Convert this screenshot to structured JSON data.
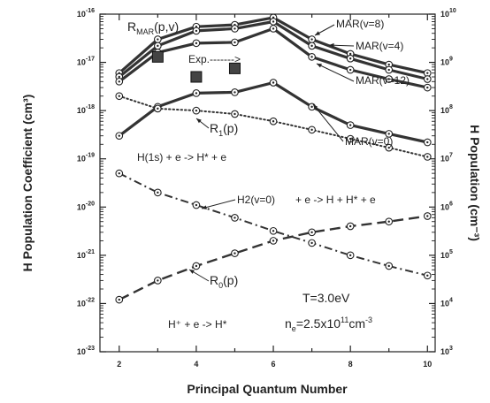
{
  "chart_data": {
    "type": "line",
    "title": "",
    "xlabel": "Principal Quantum Number",
    "ylabel": "H Population Coefficient (cm³)",
    "y2label": "H Population (cm⁻³)",
    "xlim": [
      1.5,
      10.2
    ],
    "ylim": [
      1e-23,
      1e-16
    ],
    "y2lim": [
      1000.0,
      10000000000.0
    ],
    "yscale": "log",
    "grid": false,
    "x_ticks": [
      2,
      4,
      6,
      8,
      10
    ],
    "y_ticks": [
      {
        "base": "10",
        "exp": "-16"
      },
      {
        "base": "10",
        "exp": "-17"
      },
      {
        "base": "10",
        "exp": "-18"
      },
      {
        "base": "10",
        "exp": "-19"
      },
      {
        "base": "10",
        "exp": "-20"
      },
      {
        "base": "10",
        "exp": "-21"
      },
      {
        "base": "10",
        "exp": "-22"
      },
      {
        "base": "10",
        "exp": "-23"
      }
    ],
    "y2_ticks": [
      {
        "base": "10",
        "exp": "10"
      },
      {
        "base": "10",
        "exp": "9"
      },
      {
        "base": "10",
        "exp": "8"
      },
      {
        "base": "10",
        "exp": "7"
      },
      {
        "base": "10",
        "exp": "6"
      },
      {
        "base": "10",
        "exp": "5"
      },
      {
        "base": "10",
        "exp": "4"
      },
      {
        "base": "10",
        "exp": "3"
      }
    ],
    "series": [
      {
        "name": "MAR(v=8)",
        "style": "thick",
        "x": [
          2,
          3,
          4,
          5,
          6,
          7,
          8,
          9,
          10
        ],
        "y": [
          6e-18,
          3e-17,
          5.5e-17,
          6e-17,
          8.5e-17,
          3e-17,
          1.5e-17,
          9e-18,
          6e-18
        ]
      },
      {
        "name": "MAR(v=4)",
        "style": "thick",
        "x": [
          2,
          3,
          4,
          5,
          6,
          7,
          8,
          9,
          10
        ],
        "y": [
          5e-18,
          2.2e-17,
          4.5e-17,
          5e-17,
          7e-17,
          2.2e-17,
          1.2e-17,
          7e-18,
          4.5e-18
        ]
      },
      {
        "name": "MAR(v=12)",
        "style": "thick",
        "x": [
          2,
          3,
          4,
          5,
          6,
          7,
          8,
          9,
          10
        ],
        "y": [
          4e-18,
          1.6e-17,
          2.5e-17,
          2.6e-17,
          5e-17,
          1.3e-17,
          7e-18,
          4.5e-18,
          3e-18
        ]
      },
      {
        "name": "MAR(v=0)",
        "style": "thick",
        "x": [
          2,
          3,
          4,
          5,
          6,
          7,
          8,
          9,
          10
        ],
        "y": [
          3e-19,
          1.2e-18,
          2.3e-18,
          2.4e-18,
          3.8e-18,
          1.2e-18,
          5e-19,
          3.3e-19,
          2.2e-19
        ]
      },
      {
        "name": "R1(p)",
        "style": "dotted",
        "x": [
          2,
          3,
          4,
          5,
          6,
          7,
          8,
          9,
          10
        ],
        "y": [
          2e-18,
          1.1e-18,
          1e-18,
          8.5e-19,
          6e-19,
          4e-19,
          2.6e-19,
          1.7e-19,
          1.1e-19
        ]
      },
      {
        "name": "H2(v=0)",
        "style": "dashdot",
        "x": [
          2,
          3,
          4,
          5,
          6,
          7,
          8,
          9,
          10
        ],
        "y": [
          5e-20,
          2e-20,
          1.1e-20,
          6e-21,
          3.2e-21,
          1.8e-21,
          1e-21,
          6e-22,
          3.8e-22
        ]
      },
      {
        "name": "R0(p)",
        "style": "dashed",
        "x": [
          2,
          3,
          4,
          5,
          6,
          7,
          8,
          9,
          10
        ],
        "y": [
          1.2e-22,
          3e-22,
          6e-22,
          1.1e-21,
          2e-21,
          3e-21,
          4e-21,
          5e-21,
          6.5e-21
        ]
      },
      {
        "name": "Exp.",
        "style": "squares",
        "x": [
          3,
          4,
          5
        ],
        "y": [
          1.3e-17,
          5e-18,
          7.5e-18
        ]
      }
    ],
    "labels": {
      "rmar_main": "R",
      "rmar_sub": "MAR",
      "rmar_tail": "(p,v)",
      "exp": "Exp.------->",
      "mar8": "MAR(v=8)",
      "mar4": "MAR(v=4)",
      "mar12": "MAR(v=12)",
      "mar0": "MAR(v=0)",
      "r1_main": "R",
      "r1_sub": "1",
      "r1_tail": "(p)",
      "react1": "H(1s)   +   e  ->  H*  +   e",
      "h2": "H2(v=0)",
      "react2": "+    e  ->  H   +   H*   +   e",
      "r0_main": "R",
      "r0_sub": "0",
      "r0_tail": "(p)",
      "temp": "T=3.0eV",
      "react3": "H⁺    +   e  ->  H*",
      "ne_main": "n",
      "ne_sub": "e",
      "ne_val": "=2.5x10",
      "ne_exp": "11",
      "ne_unit": "cm",
      "ne_uexp": "-3"
    }
  }
}
